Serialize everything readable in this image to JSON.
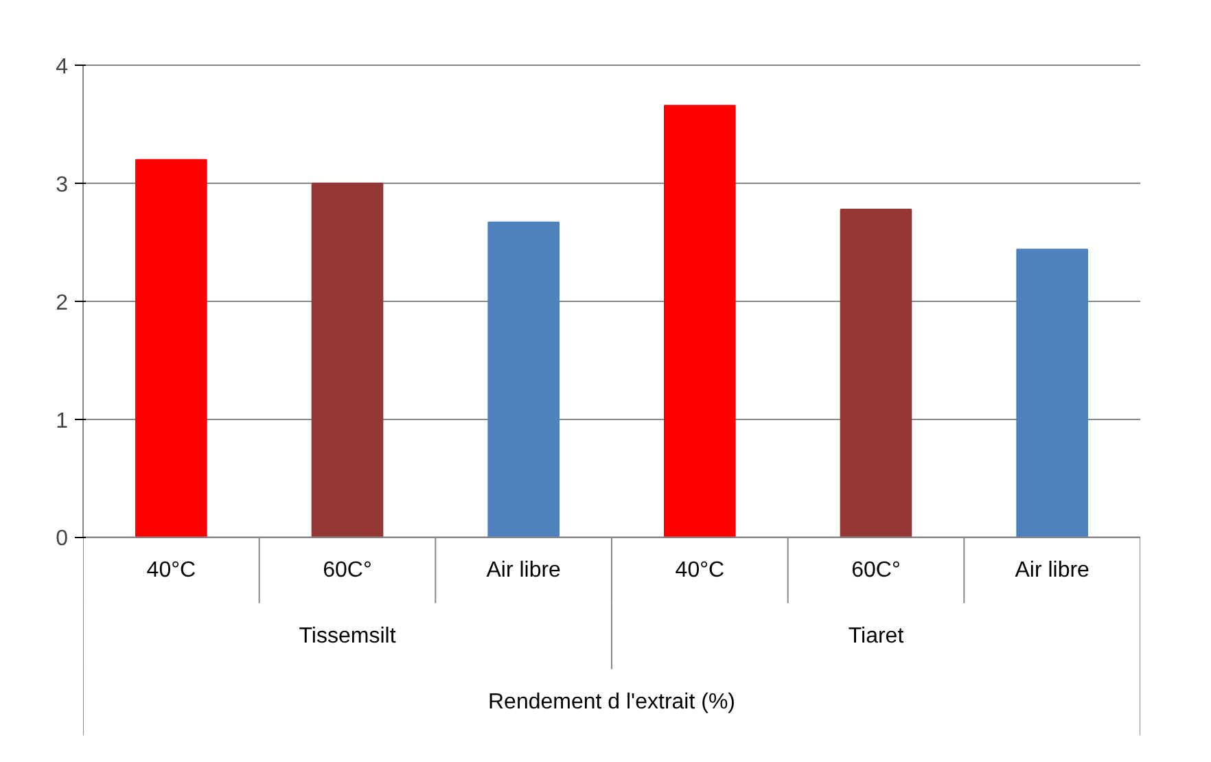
{
  "chart_data": {
    "type": "bar",
    "categories": [
      "40°C",
      "60C°",
      "Air libre",
      "40°C",
      "60C°",
      "Air libre"
    ],
    "values": [
      3.2,
      3.0,
      2.67,
      3.66,
      2.78,
      2.44
    ],
    "colors": [
      "#ff0000",
      "#953735",
      "#4f81bd",
      "#ff0000",
      "#953735",
      "#4f81bd"
    ],
    "xlabel": "Rendement d l'extrait (%)",
    "annotations": [
      "Tissemsilt",
      "Tiaret"
    ],
    "ylim": [
      0,
      4
    ],
    "yticks": [
      0,
      1,
      2,
      3,
      4
    ],
    "grid": "y"
  }
}
